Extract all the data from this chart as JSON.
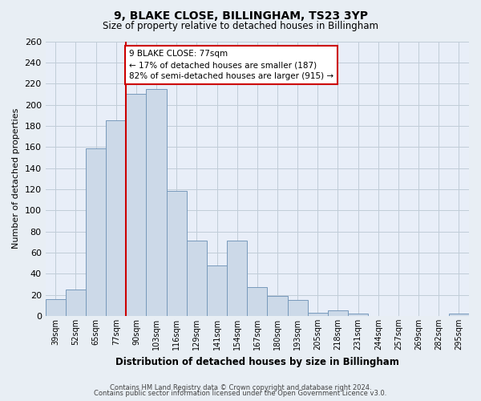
{
  "title": "9, BLAKE CLOSE, BILLINGHAM, TS23 3YP",
  "subtitle": "Size of property relative to detached houses in Billingham",
  "xlabel": "Distribution of detached houses by size in Billingham",
  "ylabel": "Number of detached properties",
  "bar_color": "#ccd9e8",
  "bar_edge_color": "#7799bb",
  "marker_color": "#cc0000",
  "categories": [
    "39sqm",
    "52sqm",
    "65sqm",
    "77sqm",
    "90sqm",
    "103sqm",
    "116sqm",
    "129sqm",
    "141sqm",
    "154sqm",
    "167sqm",
    "180sqm",
    "193sqm",
    "205sqm",
    "218sqm",
    "231sqm",
    "244sqm",
    "257sqm",
    "269sqm",
    "282sqm",
    "295sqm"
  ],
  "values": [
    16,
    25,
    159,
    185,
    210,
    215,
    118,
    71,
    48,
    71,
    27,
    19,
    15,
    3,
    5,
    2,
    0,
    0,
    0,
    0,
    2
  ],
  "ylim": [
    0,
    260
  ],
  "yticks": [
    0,
    20,
    40,
    60,
    80,
    100,
    120,
    140,
    160,
    180,
    200,
    220,
    240,
    260
  ],
  "annotation_title": "9 BLAKE CLOSE: 77sqm",
  "annotation_line1": "← 17% of detached houses are smaller (187)",
  "annotation_line2": "82% of semi-detached houses are larger (915) →",
  "footer1": "Contains HM Land Registry data © Crown copyright and database right 2024.",
  "footer2": "Contains public sector information licensed under the Open Government Licence v3.0.",
  "bg_color": "#e8eef4",
  "plot_bg_color": "#e8eef8",
  "grid_color": "#c0ccd8"
}
